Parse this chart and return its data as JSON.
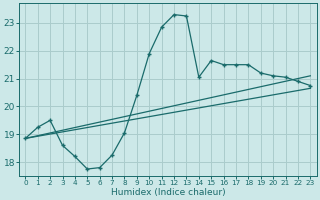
{
  "xlabel": "Humidex (Indice chaleur)",
  "xlim": [
    -0.5,
    23.5
  ],
  "ylim": [
    17.5,
    23.7
  ],
  "yticks": [
    18,
    19,
    20,
    21,
    22,
    23
  ],
  "xticks": [
    0,
    1,
    2,
    3,
    4,
    5,
    6,
    7,
    8,
    9,
    10,
    11,
    12,
    13,
    14,
    15,
    16,
    17,
    18,
    19,
    20,
    21,
    22,
    23
  ],
  "bg_color": "#cce8e8",
  "grid_color": "#aacccc",
  "line_color": "#1a6b6b",
  "line1_x": [
    0,
    1,
    2,
    3,
    4,
    5,
    6,
    7,
    8,
    9,
    10,
    11,
    12,
    13,
    14,
    15,
    16,
    17,
    18,
    19,
    20,
    21,
    22,
    23
  ],
  "line1_y": [
    18.85,
    19.25,
    19.5,
    18.6,
    18.2,
    17.75,
    17.8,
    18.25,
    19.05,
    20.4,
    21.9,
    22.85,
    23.3,
    23.25,
    21.05,
    21.65,
    21.5,
    21.5,
    21.5,
    21.2,
    21.1,
    21.05,
    20.9,
    20.75
  ],
  "line2_x": [
    0,
    23
  ],
  "line2_y": [
    18.85,
    21.1
  ],
  "line3_x": [
    0,
    23
  ],
  "line3_y": [
    18.85,
    20.65
  ]
}
